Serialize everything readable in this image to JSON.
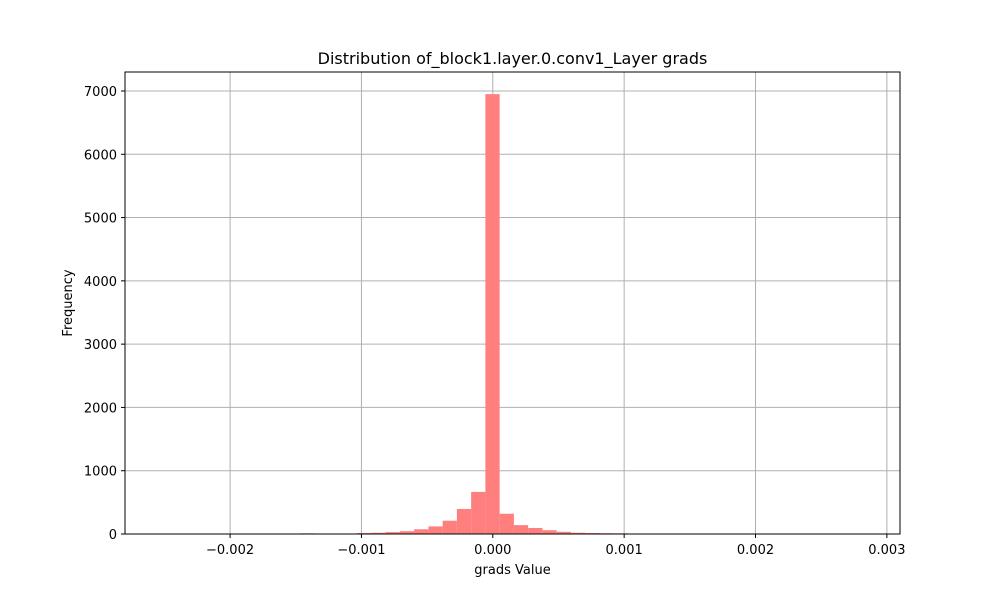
{
  "chart_data": {
    "type": "bar",
    "title": "Distribution of_block1.layer.0.conv1_Layer grads",
    "xlabel": "grads Value",
    "ylabel": "Frequency",
    "xlim": [
      -0.0028,
      0.0031
    ],
    "ylim": [
      0,
      7300
    ],
    "xticks": [
      -0.002,
      -0.001,
      0.0,
      0.001,
      0.002,
      0.003
    ],
    "xtick_labels": [
      "−0.002",
      "−0.001",
      "0.000",
      "0.001",
      "0.002",
      "0.003"
    ],
    "yticks": [
      0,
      1000,
      2000,
      3000,
      4000,
      5000,
      6000,
      7000
    ],
    "ytick_labels": [
      "0",
      "1000",
      "2000",
      "3000",
      "4000",
      "5000",
      "6000",
      "7000"
    ],
    "grid": true,
    "bar_color": "#ff7f7f",
    "bin_width": 0.0001085,
    "bins": [
      {
        "x0": -0.0026604,
        "count": 1
      },
      {
        "x0": -0.0025519,
        "count": 0
      },
      {
        "x0": -0.0024434,
        "count": 0
      },
      {
        "x0": -0.0023349,
        "count": 0
      },
      {
        "x0": -0.0022264,
        "count": 0
      },
      {
        "x0": -0.0021179,
        "count": 1
      },
      {
        "x0": -0.0020094,
        "count": 0
      },
      {
        "x0": -0.0019009,
        "count": 0
      },
      {
        "x0": -0.0017924,
        "count": 0
      },
      {
        "x0": -0.0016839,
        "count": 2
      },
      {
        "x0": -0.0015754,
        "count": 0
      },
      {
        "x0": -0.0014669,
        "count": 10
      },
      {
        "x0": -0.0013584,
        "count": 3
      },
      {
        "x0": -0.0012499,
        "count": 2
      },
      {
        "x0": -0.0011414,
        "count": 4
      },
      {
        "x0": -0.0010329,
        "count": 15
      },
      {
        "x0": -0.0009244,
        "count": 20
      },
      {
        "x0": -0.0008159,
        "count": 30
      },
      {
        "x0": -0.0007074,
        "count": 45
      },
      {
        "x0": -0.0005989,
        "count": 75
      },
      {
        "x0": -0.0004904,
        "count": 120
      },
      {
        "x0": -0.0003819,
        "count": 210
      },
      {
        "x0": -0.0002734,
        "count": 395
      },
      {
        "x0": -0.0001649,
        "count": 665
      },
      {
        "x0": -5.64e-05,
        "count": 6950
      },
      {
        "x0": 5.21e-05,
        "count": 320
      },
      {
        "x0": 0.0001606,
        "count": 140
      },
      {
        "x0": 0.0002691,
        "count": 95
      },
      {
        "x0": 0.0003776,
        "count": 60
      },
      {
        "x0": 0.0004861,
        "count": 35
      },
      {
        "x0": 0.0005946,
        "count": 20
      },
      {
        "x0": 0.0007031,
        "count": 15
      },
      {
        "x0": 0.0008116,
        "count": 12
      },
      {
        "x0": 0.0009201,
        "count": 10
      },
      {
        "x0": 0.0010286,
        "count": 8
      },
      {
        "x0": 0.0011371,
        "count": 4
      },
      {
        "x0": 0.0012456,
        "count": 2
      },
      {
        "x0": 0.0013541,
        "count": 2
      },
      {
        "x0": 0.0014626,
        "count": 1
      },
      {
        "x0": 0.0015711,
        "count": 1
      },
      {
        "x0": 0.0016796,
        "count": 1
      },
      {
        "x0": 0.0017881,
        "count": 1
      },
      {
        "x0": 0.0018966,
        "count": 0
      },
      {
        "x0": 0.0020051,
        "count": 0
      },
      {
        "x0": 0.0021136,
        "count": 1
      },
      {
        "x0": 0.0022221,
        "count": 0
      },
      {
        "x0": 0.0023306,
        "count": 0
      },
      {
        "x0": 0.0024391,
        "count": 0
      },
      {
        "x0": 0.0025476,
        "count": 0
      },
      {
        "x0": 0.0026561,
        "count": 1
      }
    ]
  }
}
